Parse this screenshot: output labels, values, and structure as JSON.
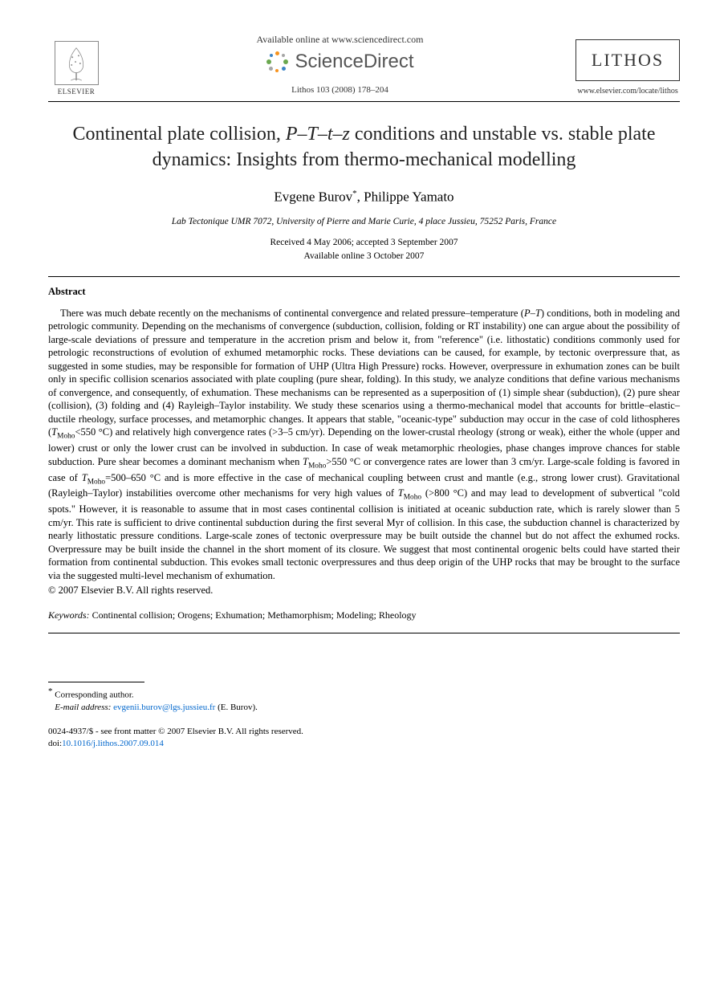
{
  "header": {
    "elsevier_label": "ELSEVIER",
    "available_text": "Available online at www.sciencedirect.com",
    "sd_name": "ScienceDirect",
    "citation": "Lithos 103 (2008) 178–204",
    "journal_box": "LITHOS",
    "journal_url": "www.elsevier.com/locate/lithos",
    "sd_dot_colors": [
      "#f7931e",
      "#a6a6a6",
      "#6aa84f",
      "#3d85c6",
      "#f7931e",
      "#a6a6a6",
      "#6aa84f",
      "#3d85c6",
      "#f7931e"
    ]
  },
  "title_html": "Continental plate collision, <span class=\"italic\">P</span>–<span class=\"italic\">T</span>–<span class=\"italic\">t</span>–<span class=\"italic\">z</span> conditions and unstable vs. stable plate dynamics: Insights from thermo-mechanical modelling",
  "authors_html": "Evgene Burov<span class=\"corr-mark\">*</span>, Philippe Yamato",
  "affiliation": "Lab Tectonique UMR 7072, University of Pierre and Marie Curie, 4 place Jussieu, 75252 Paris, France",
  "dates": {
    "received_accepted": "Received 4 May 2006; accepted 3 September 2007",
    "online": "Available online 3 October 2007"
  },
  "abstract": {
    "heading": "Abstract",
    "body_html": "There was much debate recently on the mechanisms of continental convergence and related pressure–temperature (<span class=\"italic\">P</span>–<span class=\"italic\">T</span>) conditions, both in modeling and petrologic community. Depending on the mechanisms of convergence (subduction, collision, folding or RT instability) one can argue about the possibility of large-scale deviations of pressure and temperature in the accretion prism and below it, from \"reference\" (i.e. lithostatic) conditions commonly used for petrologic reconstructions of evolution of exhumed metamorphic rocks. These deviations can be caused, for example, by tectonic overpressure that, as suggested in some studies, may be responsible for formation of UHP (Ultra High Pressure) rocks. However, overpressure in exhumation zones can be built only in specific collision scenarios associated with plate coupling (pure shear, folding). In this study, we analyze conditions that define various mechanisms of convergence, and consequently, of exhumation. These mechanisms can be represented as a superposition of (1) simple shear (subduction), (2) pure shear (collision), (3) folding and (4) Rayleigh–Taylor instability. We study these scenarios using a thermo-mechanical model that accounts for brittle–elastic–ductile rheology, surface processes, and metamorphic changes. It appears that stable, \"oceanic-type\" subduction may occur in the case of cold lithospheres (<span class=\"italic\">T</span><sub>Moho</sub>&lt;550 °C) and relatively high convergence rates (&gt;3–5 cm/yr). Depending on the lower-crustal rheology (strong or weak), either the whole (upper and lower) crust or only the lower crust can be involved in subduction. In case of weak metamorphic rheologies, phase changes improve chances for stable subduction. Pure shear becomes a dominant mechanism when <span class=\"italic\">T</span><sub>Moho</sub>&gt;550 °C or convergence rates are lower than 3 cm/yr. Large-scale folding is favored in case of <span class=\"italic\">T</span><sub>Moho</sub>=500–650 °C and is more effective in the case of mechanical coupling between crust and mantle (e.g., strong lower crust). Gravitational (Rayleigh–Taylor) instabilities overcome other mechanisms for very high values of <span class=\"italic\">T</span><sub>Moho</sub> (&gt;800 °C) and may lead to development of subvertical \"cold spots.\" However, it is reasonable to assume that in most cases continental collision is initiated at oceanic subduction rate, which is rarely slower than 5 cm/yr. This rate is sufficient to drive continental subduction during the first several Myr of collision. In this case, the subduction channel is characterized by nearly lithostatic pressure conditions. Large-scale zones of tectonic overpressure may be built outside the channel but do not affect the exhumed rocks. Overpressure may be built inside the channel in the short moment of its closure. We suggest that most continental orogenic belts could have started their formation from continental subduction. This evokes small tectonic overpressures and thus deep origin of the UHP rocks that may be brought to the surface via the suggested multi-level mechanism of exhumation.",
    "copyright": "© 2007 Elsevier B.V. All rights reserved."
  },
  "keywords": {
    "label": "Keywords:",
    "text": "Continental collision; Orogens; Exhumation; Methamorphism; Modeling; Rheology"
  },
  "footnote": {
    "corr": "Corresponding author.",
    "email_label": "E-mail address:",
    "email": "evgenii.burov@lgs.jussieu.fr",
    "email_author": "(E. Burov)."
  },
  "front_matter": {
    "line1": "0024-4937/$ - see front matter © 2007 Elsevier B.V. All rights reserved.",
    "doi_label": "doi:",
    "doi": "10.1016/j.lithos.2007.09.014"
  }
}
